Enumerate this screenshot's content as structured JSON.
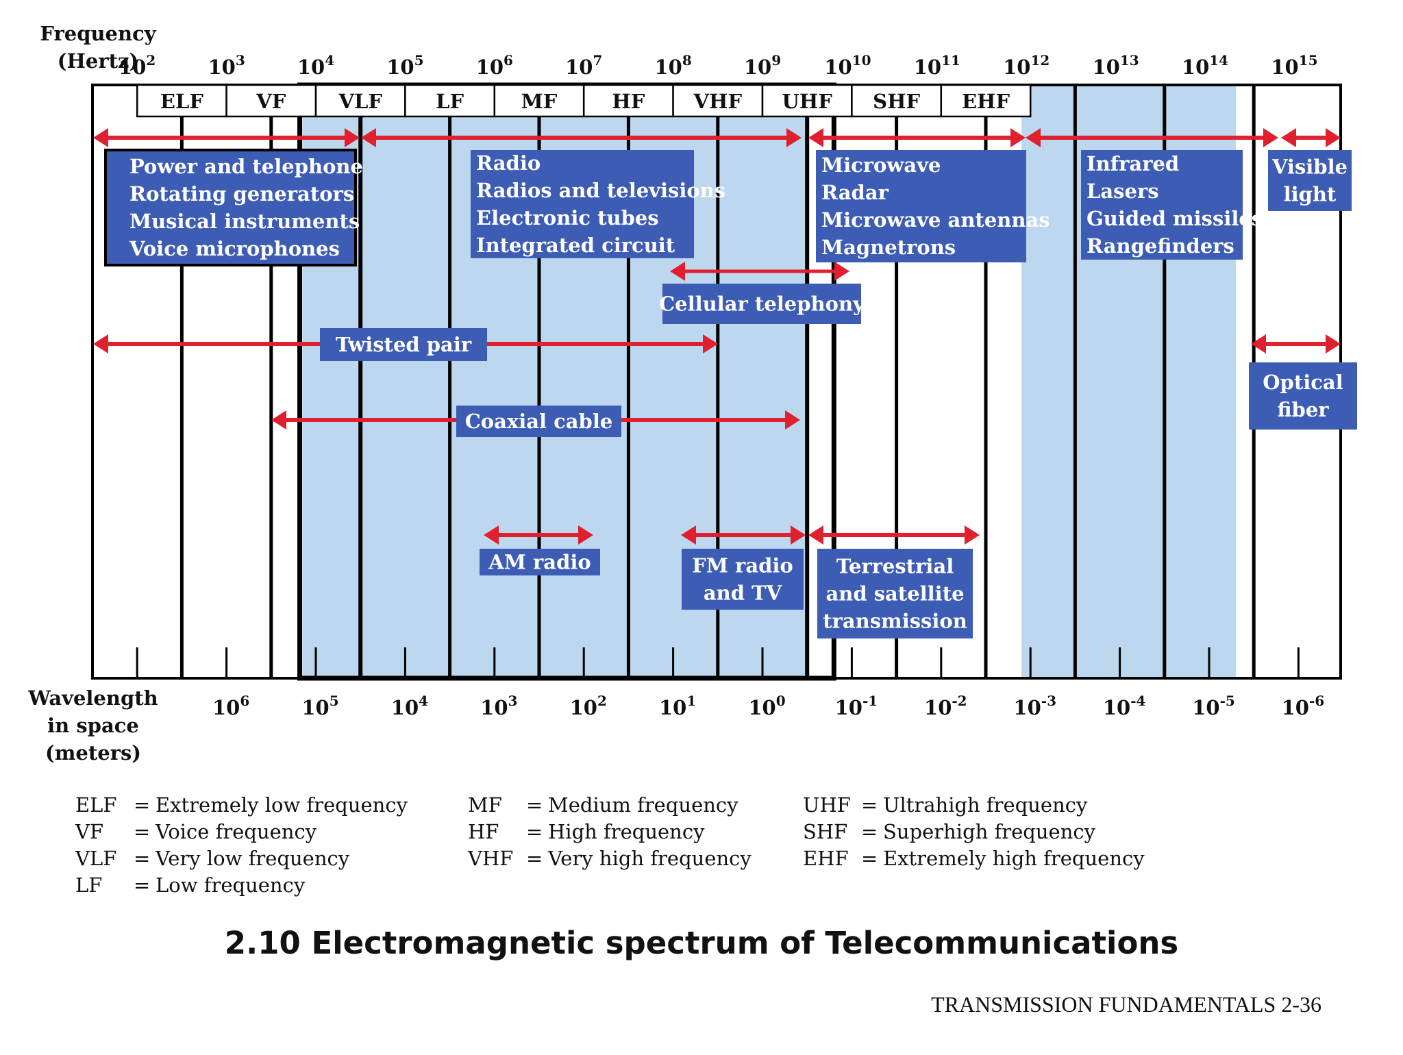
{
  "axis": {
    "frequency_label": [
      "Frequency",
      "(Hertz)"
    ],
    "frequency_exponents": [
      "2",
      "3",
      "4",
      "5",
      "6",
      "7",
      "8",
      "9",
      "10",
      "11",
      "12",
      "13",
      "14",
      "15"
    ],
    "wavelength_label": [
      "Wavelength",
      "in space",
      "(meters)"
    ],
    "wavelength_exponents": [
      "6",
      "5",
      "4",
      "3",
      "2",
      "1",
      "0",
      "-1",
      "-2",
      "-3",
      "-4",
      "-5",
      "-6"
    ]
  },
  "bands": [
    "ELF",
    "VF",
    "VLF",
    "LF",
    "MF",
    "HF",
    "VHF",
    "UHF",
    "SHF",
    "EHF"
  ],
  "colors": {
    "arrow": "#e0202e",
    "box": "#3d5cb4",
    "shade": "#bcd7ee"
  },
  "boxes": [
    {
      "id": "power",
      "lines": [
        "Power and telephone",
        "Rotating generators",
        "Musical instruments",
        "Voice microphones"
      ]
    },
    {
      "id": "radio",
      "lines": [
        "Radio",
        "Radios and televisions",
        "Electronic tubes",
        "Integrated circuit"
      ]
    },
    {
      "id": "microwave",
      "lines": [
        "Microwave",
        "Radar",
        "Microwave antennas",
        "Magnetrons"
      ]
    },
    {
      "id": "infrared",
      "lines": [
        "Infrared",
        "Lasers",
        "Guided missiles",
        "Rangefinders"
      ]
    },
    {
      "id": "visible",
      "lines": [
        "Visible",
        "light"
      ]
    },
    {
      "id": "cellular",
      "lines": [
        "Cellular telephony"
      ]
    },
    {
      "id": "twisted",
      "lines": [
        "Twisted pair"
      ]
    },
    {
      "id": "optical",
      "lines": [
        "Optical",
        "fiber"
      ]
    },
    {
      "id": "coaxial",
      "lines": [
        "Coaxial cable"
      ]
    },
    {
      "id": "am",
      "lines": [
        "AM radio"
      ]
    },
    {
      "id": "fm",
      "lines": [
        "FM radio",
        "and TV"
      ]
    },
    {
      "id": "terrestrial",
      "lines": [
        "Terrestrial",
        "and satellite",
        "transmission"
      ]
    }
  ],
  "abbreviations": {
    "col1": [
      {
        "k": "ELF",
        "v": "Extremely low frequency"
      },
      {
        "k": "VF",
        "v": "Voice frequency"
      },
      {
        "k": "VLF",
        "v": "Very low frequency"
      },
      {
        "k": "LF",
        "v": "Low frequency"
      }
    ],
    "col2": [
      {
        "k": "MF",
        "v": "Medium frequency"
      },
      {
        "k": "HF",
        "v": "High frequency"
      },
      {
        "k": "VHF",
        "v": "Very high frequency"
      }
    ],
    "col3": [
      {
        "k": "UHF",
        "v": "Ultrahigh frequency"
      },
      {
        "k": "SHF",
        "v": "Superhigh frequency"
      },
      {
        "k": "EHF",
        "v": "Extremely high frequency"
      }
    ]
  },
  "caption": "2.10 Electromagnetic spectrum of Telecommunications",
  "footer": "TRANSMISSION FUNDAMENTALS 2-36"
}
